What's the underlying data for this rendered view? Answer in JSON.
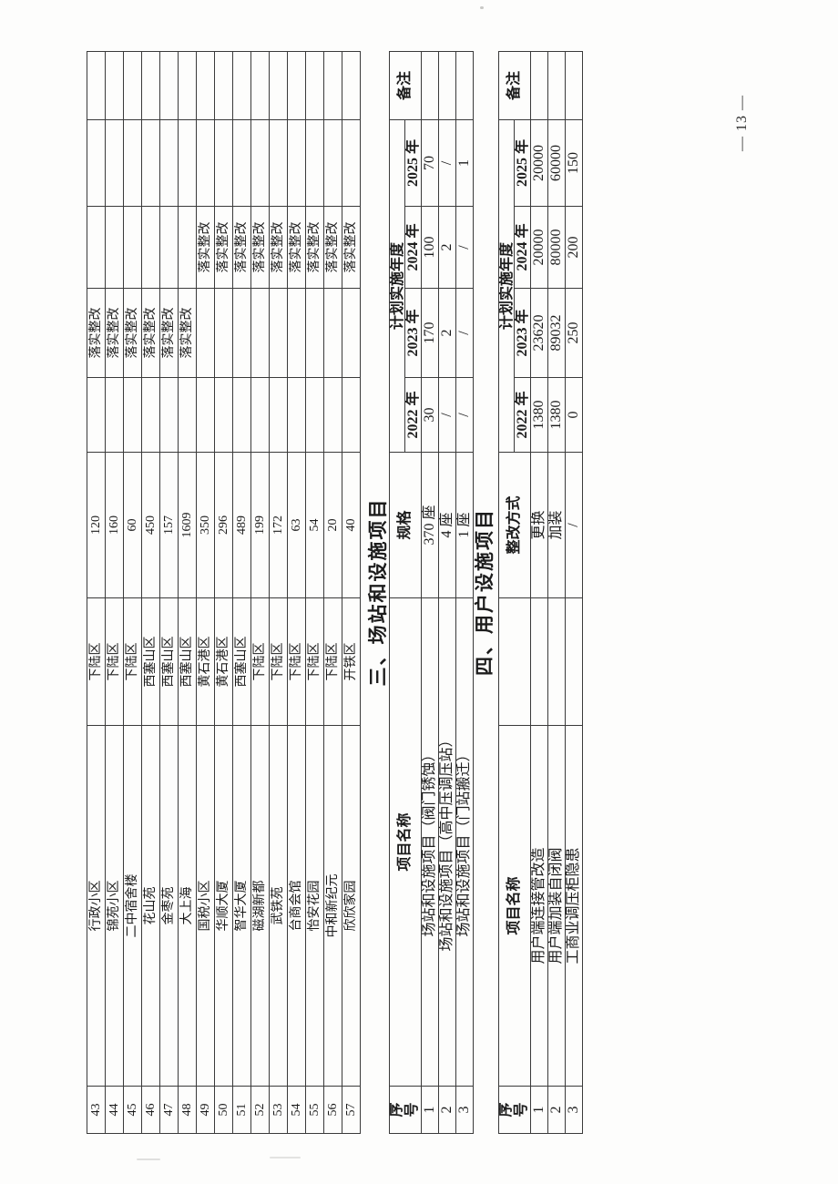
{
  "page": {
    "number_label": "— 13 —"
  },
  "continuation_table": {
    "columns": [
      "no",
      "name",
      "district",
      "qty",
      "y2022",
      "y2023",
      "y2024",
      "y2025",
      "remark"
    ],
    "rows": [
      {
        "no": "43",
        "name": "行政小区",
        "district": "下陆区",
        "qty": "120",
        "y2022": "",
        "y2023": "落实整改",
        "y2024": "",
        "y2025": "",
        "remark": ""
      },
      {
        "no": "44",
        "name": "锦苑小区",
        "district": "下陆区",
        "qty": "160",
        "y2022": "",
        "y2023": "落实整改",
        "y2024": "",
        "y2025": "",
        "remark": ""
      },
      {
        "no": "45",
        "name": "二中宿舍楼",
        "district": "下陆区",
        "qty": "60",
        "y2022": "",
        "y2023": "落实整改",
        "y2024": "",
        "y2025": "",
        "remark": ""
      },
      {
        "no": "46",
        "name": "花山苑",
        "district": "西塞山区",
        "qty": "450",
        "y2022": "",
        "y2023": "落实整改",
        "y2024": "",
        "y2025": "",
        "remark": ""
      },
      {
        "no": "47",
        "name": "金枣苑",
        "district": "西塞山区",
        "qty": "157",
        "y2022": "",
        "y2023": "落实整改",
        "y2024": "",
        "y2025": "",
        "remark": ""
      },
      {
        "no": "48",
        "name": "大上海",
        "district": "西塞山区",
        "qty": "1609",
        "y2022": "",
        "y2023": "落实整改",
        "y2024": "",
        "y2025": "",
        "remark": ""
      },
      {
        "no": "49",
        "name": "国税小区",
        "district": "黄石港区",
        "qty": "350",
        "y2022": "",
        "y2023": "",
        "y2024": "落实整改",
        "y2025": "",
        "remark": ""
      },
      {
        "no": "50",
        "name": "华顺大厦",
        "district": "黄石港区",
        "qty": "296",
        "y2022": "",
        "y2023": "",
        "y2024": "落实整改",
        "y2025": "",
        "remark": ""
      },
      {
        "no": "51",
        "name": "智华大厦",
        "district": "西塞山区",
        "qty": "489",
        "y2022": "",
        "y2023": "",
        "y2024": "落实整改",
        "y2025": "",
        "remark": ""
      },
      {
        "no": "52",
        "name": "磁湖新都",
        "district": "下陆区",
        "qty": "199",
        "y2022": "",
        "y2023": "",
        "y2024": "落实整改",
        "y2025": "",
        "remark": ""
      },
      {
        "no": "53",
        "name": "武铁苑",
        "district": "下陆区",
        "qty": "172",
        "y2022": "",
        "y2023": "",
        "y2024": "落实整改",
        "y2025": "",
        "remark": ""
      },
      {
        "no": "54",
        "name": "台商会馆",
        "district": "下陆区",
        "qty": "63",
        "y2022": "",
        "y2023": "",
        "y2024": "落实整改",
        "y2025": "",
        "remark": ""
      },
      {
        "no": "55",
        "name": "怡安花园",
        "district": "下陆区",
        "qty": "54",
        "y2022": "",
        "y2023": "",
        "y2024": "落实整改",
        "y2025": "",
        "remark": ""
      },
      {
        "no": "56",
        "name": "中和新纪元",
        "district": "下陆区",
        "qty": "20",
        "y2022": "",
        "y2023": "",
        "y2024": "落实整改",
        "y2025": "",
        "remark": ""
      },
      {
        "no": "57",
        "name": "欣欣家园",
        "district": "开铁区",
        "qty": "40",
        "y2022": "",
        "y2023": "",
        "y2024": "落实整改",
        "y2025": "",
        "remark": ""
      }
    ]
  },
  "section3": {
    "title": "三、场站和设施项目",
    "table": {
      "columns": [
        "no",
        "name",
        "spec",
        "y2022",
        "y2023",
        "y2024",
        "y2025",
        "remark"
      ],
      "headers": {
        "no": "序号",
        "name": "项目名称",
        "spec": "规格",
        "plan": "计划实施年度",
        "y2022": "2022 年",
        "y2023": "2023 年",
        "y2024": "2024 年",
        "y2025": "2025 年",
        "remark": "备注"
      },
      "rows": [
        {
          "no": "1",
          "name": "场站和设施项目（阀门锈蚀）",
          "spec": "370 座",
          "y2022": "30",
          "y2023": "170",
          "y2024": "100",
          "y2025": "70",
          "remark": ""
        },
        {
          "no": "2",
          "name": "场站和设施项目（高中压调压站）",
          "spec": "4 座",
          "y2022": "/",
          "y2023": "2",
          "y2024": "2",
          "y2025": "/",
          "remark": ""
        },
        {
          "no": "3",
          "name": "场站和设施项目（门站搬迁）",
          "spec": "1 座",
          "y2022": "/",
          "y2023": "/",
          "y2024": "/",
          "y2025": "1",
          "remark": ""
        }
      ]
    }
  },
  "section4": {
    "title": "四、用户设施项目",
    "table": {
      "columns": [
        "no",
        "name",
        "spacer",
        "method",
        "y2022",
        "y2023",
        "y2024",
        "y2025",
        "remark"
      ],
      "headers": {
        "no": "序号",
        "name": "项目名称",
        "spacer": "",
        "method": "整改方式",
        "plan": "计划实施年度",
        "y2022": "2022 年",
        "y2023": "2023 年",
        "y2024": "2024 年",
        "y2025": "2025 年",
        "remark": "备注"
      },
      "rows": [
        {
          "no": "1",
          "name": "用户端连接管改造",
          "spacer": "",
          "method": "更换",
          "y2022": "1380",
          "y2023": "23620",
          "y2024": "20000",
          "y2025": "20000",
          "remark": ""
        },
        {
          "no": "2",
          "name": "用户端加装自闭阀",
          "spacer": "",
          "method": "加装",
          "y2022": "1380",
          "y2023": "89032",
          "y2024": "80000",
          "y2025": "60000",
          "remark": ""
        },
        {
          "no": "3",
          "name": "工商业调压柜隐患",
          "spacer": "",
          "method": "/",
          "y2022": "0",
          "y2023": "250",
          "y2024": "200",
          "y2025": "150",
          "remark": ""
        }
      ]
    }
  }
}
